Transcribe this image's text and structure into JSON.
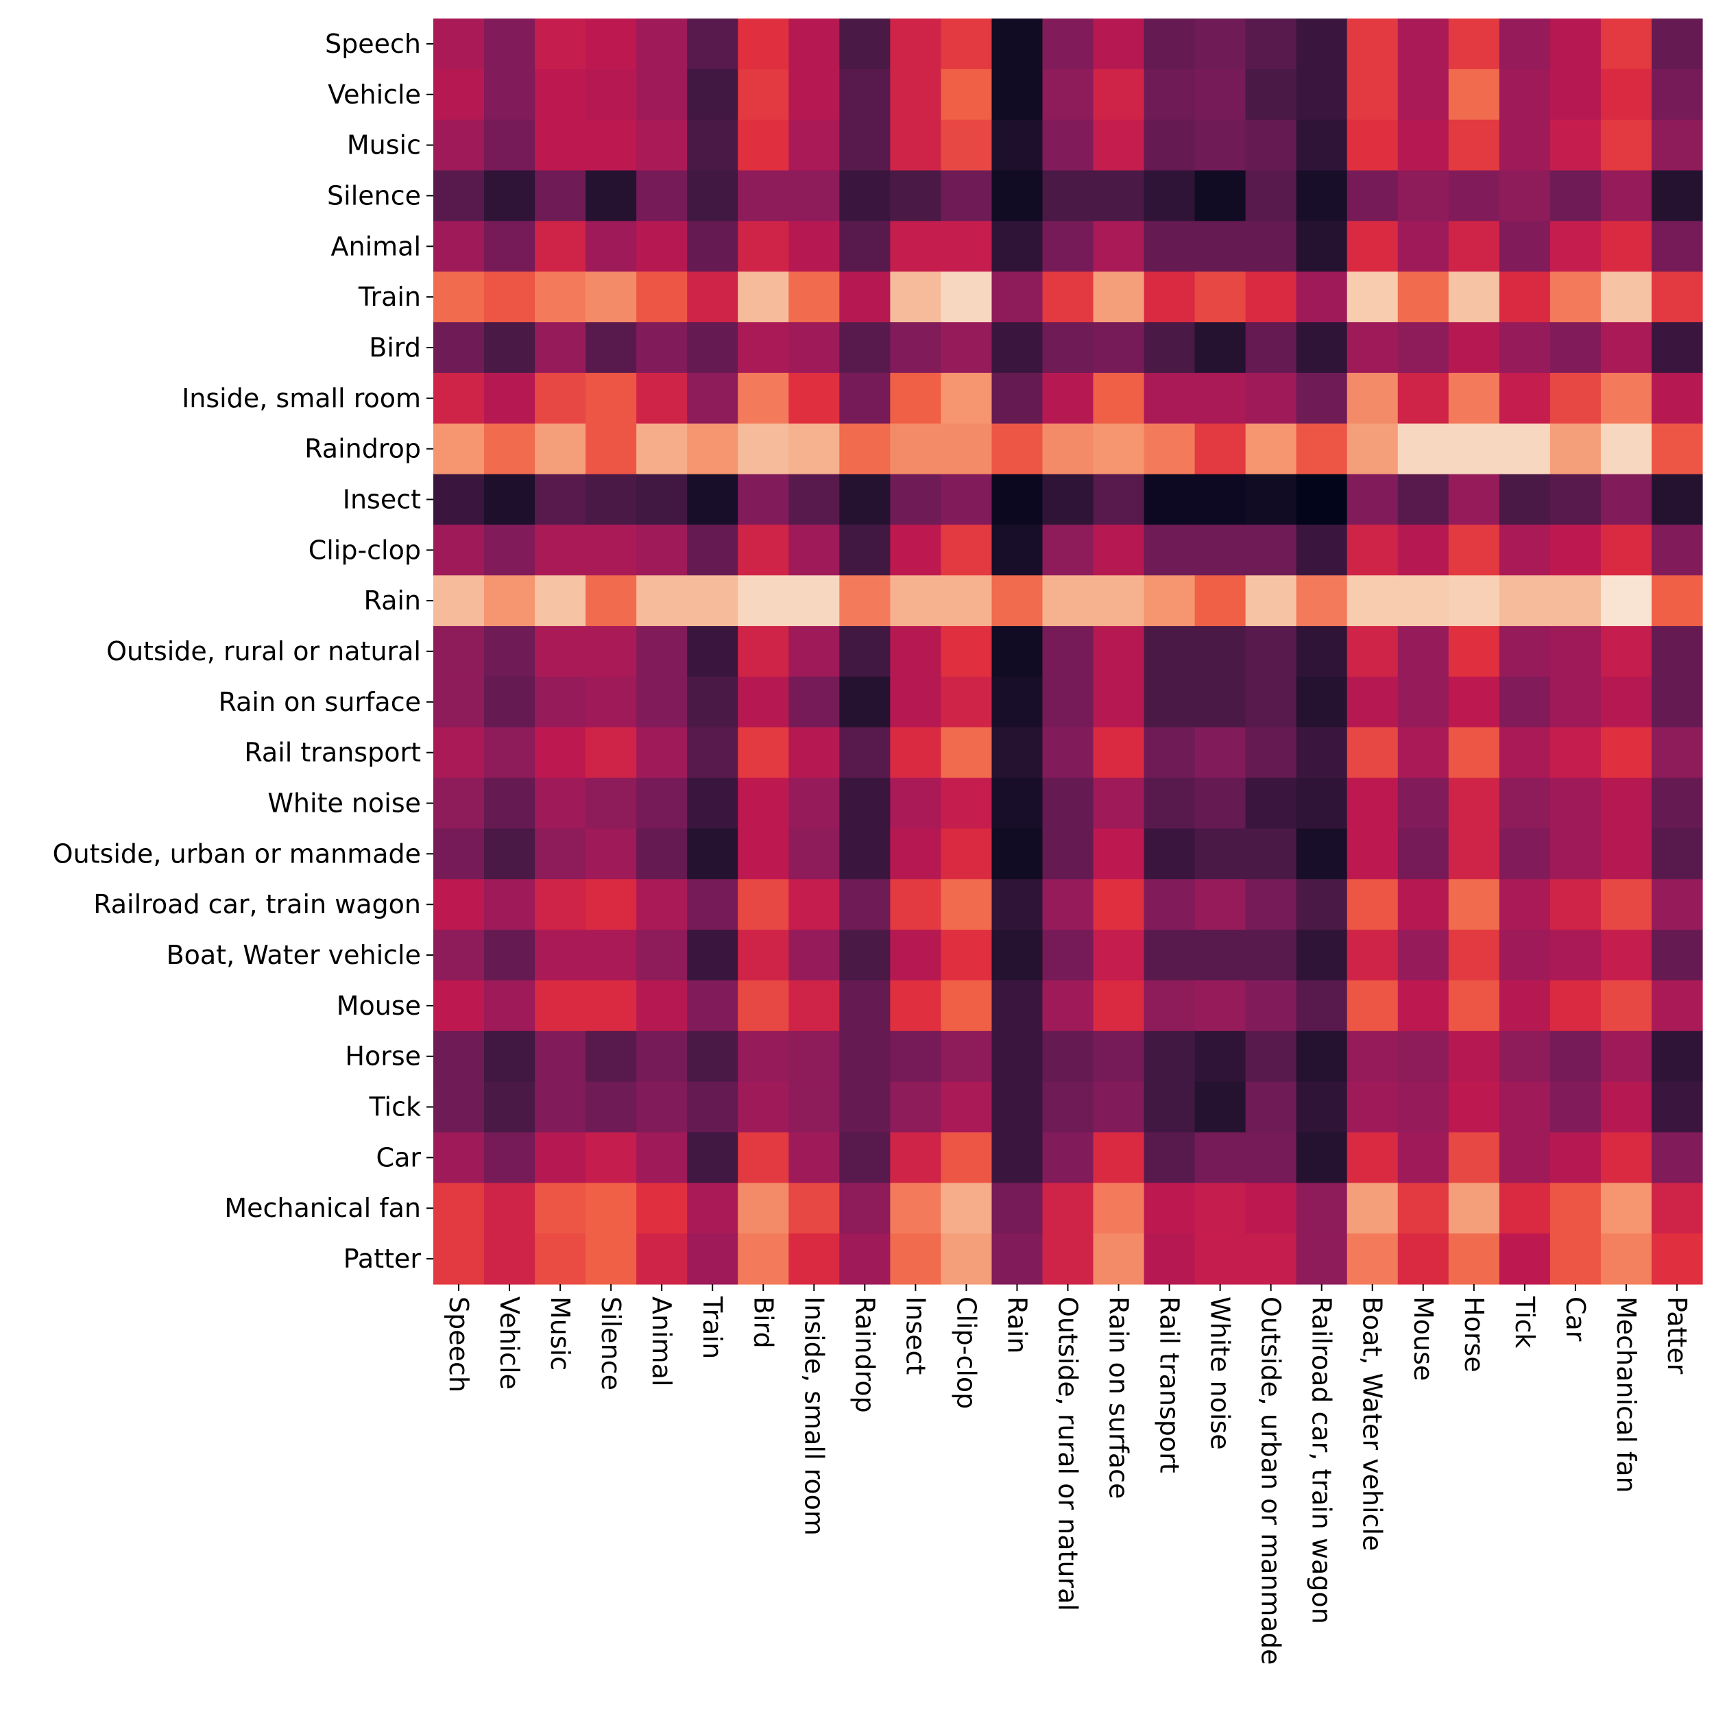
{
  "chart_data": {
    "type": "heatmap",
    "title": "",
    "xlabel": "",
    "ylabel": "",
    "grid": false,
    "colorbar": false,
    "colormap": "rocket",
    "value_range": [
      0,
      1
    ],
    "row_labels": [
      "Speech",
      "Vehicle",
      "Music",
      "Silence",
      "Animal",
      "Train",
      "Bird",
      "Inside, small room",
      "Raindrop",
      "Insect",
      "Clip-clop",
      "Rain",
      "Outside, rural or natural",
      "Rain on surface",
      "Rail transport",
      "White noise",
      "Outside, urban or manmade",
      "Railroad car, train wagon",
      "Boat, Water vehicle",
      "Mouse",
      "Horse",
      "Tick",
      "Car",
      "Mechanical fan",
      "Patter"
    ],
    "col_labels": [
      "Speech",
      "Vehicle",
      "Music",
      "Silence",
      "Animal",
      "Train",
      "Bird",
      "Inside, small room",
      "Raindrop",
      "Insect",
      "Clip-clop",
      "Rain",
      "Outside, rural or natural",
      "Rain on surface",
      "Rail transport",
      "White noise",
      "Outside, urban or manmade",
      "Railroad car, train wagon",
      "Boat, Water vehicle",
      "Mouse",
      "Horse",
      "Tick",
      "Car",
      "Mechanical fan",
      "Patter"
    ],
    "values": [
      [
        0.45,
        0.35,
        0.52,
        0.5,
        0.42,
        0.25,
        0.6,
        0.48,
        0.22,
        0.55,
        0.62,
        0.05,
        0.35,
        0.48,
        0.28,
        0.3,
        0.25,
        0.18,
        0.62,
        0.45,
        0.62,
        0.4,
        0.48,
        0.62,
        0.28
      ],
      [
        0.48,
        0.35,
        0.5,
        0.48,
        0.42,
        0.2,
        0.62,
        0.48,
        0.25,
        0.55,
        0.7,
        0.05,
        0.38,
        0.55,
        0.3,
        0.32,
        0.22,
        0.18,
        0.62,
        0.45,
        0.72,
        0.42,
        0.48,
        0.58,
        0.32
      ],
      [
        0.42,
        0.32,
        0.5,
        0.5,
        0.45,
        0.22,
        0.6,
        0.45,
        0.25,
        0.55,
        0.65,
        0.1,
        0.35,
        0.52,
        0.28,
        0.3,
        0.28,
        0.15,
        0.6,
        0.48,
        0.62,
        0.42,
        0.52,
        0.62,
        0.38
      ],
      [
        0.25,
        0.15,
        0.3,
        0.12,
        0.32,
        0.2,
        0.38,
        0.38,
        0.18,
        0.22,
        0.3,
        0.05,
        0.22,
        0.22,
        0.15,
        0.05,
        0.25,
        0.08,
        0.32,
        0.38,
        0.35,
        0.38,
        0.3,
        0.4,
        0.12
      ],
      [
        0.42,
        0.32,
        0.55,
        0.42,
        0.48,
        0.28,
        0.55,
        0.48,
        0.25,
        0.52,
        0.52,
        0.15,
        0.32,
        0.45,
        0.28,
        0.28,
        0.28,
        0.12,
        0.58,
        0.42,
        0.55,
        0.35,
        0.52,
        0.58,
        0.32
      ],
      [
        0.72,
        0.68,
        0.75,
        0.78,
        0.68,
        0.55,
        0.88,
        0.72,
        0.48,
        0.88,
        0.95,
        0.38,
        0.62,
        0.82,
        0.58,
        0.65,
        0.58,
        0.42,
        0.92,
        0.72,
        0.9,
        0.58,
        0.75,
        0.9,
        0.62
      ],
      [
        0.3,
        0.22,
        0.4,
        0.25,
        0.35,
        0.28,
        0.45,
        0.42,
        0.25,
        0.35,
        0.4,
        0.18,
        0.3,
        0.32,
        0.22,
        0.12,
        0.28,
        0.15,
        0.42,
        0.38,
        0.48,
        0.4,
        0.35,
        0.45,
        0.18
      ],
      [
        0.55,
        0.48,
        0.65,
        0.68,
        0.55,
        0.38,
        0.75,
        0.6,
        0.32,
        0.7,
        0.8,
        0.28,
        0.48,
        0.7,
        0.45,
        0.45,
        0.42,
        0.3,
        0.78,
        0.55,
        0.75,
        0.52,
        0.65,
        0.75,
        0.48
      ],
      [
        0.8,
        0.72,
        0.82,
        0.68,
        0.85,
        0.8,
        0.88,
        0.86,
        0.72,
        0.78,
        0.78,
        0.68,
        0.78,
        0.8,
        0.75,
        0.62,
        0.8,
        0.68,
        0.82,
        0.95,
        0.95,
        0.95,
        0.82,
        0.95,
        0.68
      ],
      [
        0.18,
        0.1,
        0.25,
        0.22,
        0.2,
        0.08,
        0.35,
        0.25,
        0.12,
        0.3,
        0.35,
        0.03,
        0.15,
        0.25,
        0.04,
        0.04,
        0.05,
        0.0,
        0.35,
        0.25,
        0.4,
        0.22,
        0.25,
        0.35,
        0.12
      ],
      [
        0.42,
        0.35,
        0.45,
        0.45,
        0.42,
        0.28,
        0.55,
        0.42,
        0.2,
        0.5,
        0.62,
        0.08,
        0.38,
        0.48,
        0.3,
        0.3,
        0.3,
        0.18,
        0.55,
        0.48,
        0.62,
        0.45,
        0.5,
        0.58,
        0.35
      ],
      [
        0.88,
        0.8,
        0.9,
        0.72,
        0.88,
        0.88,
        0.95,
        0.95,
        0.75,
        0.86,
        0.86,
        0.72,
        0.86,
        0.86,
        0.8,
        0.7,
        0.9,
        0.75,
        0.92,
        0.92,
        0.93,
        0.88,
        0.88,
        0.98,
        0.7
      ],
      [
        0.38,
        0.3,
        0.45,
        0.45,
        0.35,
        0.18,
        0.55,
        0.42,
        0.2,
        0.48,
        0.6,
        0.05,
        0.32,
        0.48,
        0.22,
        0.22,
        0.25,
        0.15,
        0.55,
        0.4,
        0.6,
        0.4,
        0.42,
        0.52,
        0.28
      ],
      [
        0.38,
        0.28,
        0.4,
        0.42,
        0.35,
        0.22,
        0.48,
        0.32,
        0.12,
        0.48,
        0.55,
        0.08,
        0.32,
        0.48,
        0.22,
        0.22,
        0.25,
        0.12,
        0.48,
        0.4,
        0.5,
        0.35,
        0.42,
        0.48,
        0.28
      ],
      [
        0.45,
        0.38,
        0.5,
        0.55,
        0.42,
        0.25,
        0.62,
        0.48,
        0.25,
        0.58,
        0.72,
        0.12,
        0.35,
        0.58,
        0.3,
        0.35,
        0.28,
        0.18,
        0.65,
        0.45,
        0.68,
        0.45,
        0.52,
        0.6,
        0.38
      ],
      [
        0.38,
        0.28,
        0.42,
        0.38,
        0.32,
        0.18,
        0.5,
        0.4,
        0.18,
        0.45,
        0.52,
        0.08,
        0.28,
        0.42,
        0.25,
        0.28,
        0.18,
        0.15,
        0.5,
        0.35,
        0.55,
        0.38,
        0.42,
        0.48,
        0.28
      ],
      [
        0.32,
        0.22,
        0.38,
        0.42,
        0.28,
        0.12,
        0.5,
        0.38,
        0.18,
        0.48,
        0.58,
        0.05,
        0.28,
        0.5,
        0.18,
        0.22,
        0.22,
        0.08,
        0.5,
        0.32,
        0.55,
        0.35,
        0.42,
        0.48,
        0.25
      ],
      [
        0.5,
        0.42,
        0.55,
        0.58,
        0.45,
        0.32,
        0.65,
        0.52,
        0.3,
        0.62,
        0.72,
        0.15,
        0.4,
        0.6,
        0.35,
        0.4,
        0.32,
        0.22,
        0.68,
        0.48,
        0.72,
        0.45,
        0.55,
        0.65,
        0.4
      ],
      [
        0.38,
        0.28,
        0.45,
        0.45,
        0.38,
        0.18,
        0.55,
        0.4,
        0.22,
        0.48,
        0.6,
        0.12,
        0.32,
        0.52,
        0.25,
        0.25,
        0.25,
        0.15,
        0.55,
        0.4,
        0.62,
        0.42,
        0.45,
        0.52,
        0.28
      ],
      [
        0.5,
        0.42,
        0.58,
        0.58,
        0.48,
        0.35,
        0.65,
        0.55,
        0.28,
        0.6,
        0.7,
        0.18,
        0.42,
        0.58,
        0.38,
        0.4,
        0.35,
        0.25,
        0.68,
        0.5,
        0.68,
        0.48,
        0.58,
        0.65,
        0.45
      ],
      [
        0.3,
        0.2,
        0.35,
        0.25,
        0.32,
        0.22,
        0.4,
        0.38,
        0.28,
        0.32,
        0.38,
        0.18,
        0.28,
        0.32,
        0.2,
        0.15,
        0.25,
        0.12,
        0.4,
        0.38,
        0.48,
        0.38,
        0.32,
        0.42,
        0.15
      ],
      [
        0.3,
        0.22,
        0.35,
        0.3,
        0.35,
        0.28,
        0.42,
        0.38,
        0.28,
        0.38,
        0.45,
        0.18,
        0.3,
        0.35,
        0.2,
        0.12,
        0.3,
        0.15,
        0.42,
        0.4,
        0.5,
        0.42,
        0.35,
        0.48,
        0.18
      ],
      [
        0.42,
        0.32,
        0.48,
        0.52,
        0.42,
        0.2,
        0.62,
        0.42,
        0.25,
        0.55,
        0.68,
        0.18,
        0.35,
        0.58,
        0.25,
        0.32,
        0.32,
        0.12,
        0.58,
        0.42,
        0.65,
        0.42,
        0.48,
        0.58,
        0.35
      ],
      [
        0.62,
        0.55,
        0.68,
        0.7,
        0.6,
        0.45,
        0.78,
        0.65,
        0.38,
        0.75,
        0.85,
        0.32,
        0.55,
        0.75,
        0.5,
        0.52,
        0.5,
        0.38,
        0.82,
        0.62,
        0.82,
        0.58,
        0.68,
        0.8,
        0.55
      ],
      [
        0.62,
        0.55,
        0.66,
        0.7,
        0.55,
        0.42,
        0.75,
        0.58,
        0.42,
        0.72,
        0.82,
        0.35,
        0.55,
        0.78,
        0.48,
        0.52,
        0.52,
        0.38,
        0.75,
        0.58,
        0.72,
        0.5,
        0.68,
        0.76,
        0.6
      ]
    ]
  }
}
